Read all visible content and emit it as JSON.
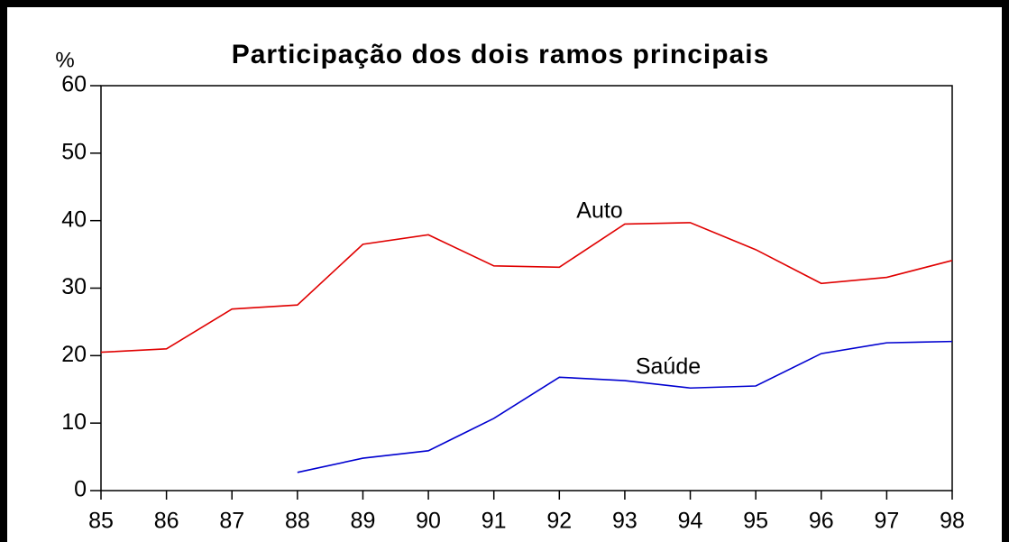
{
  "chart_data": {
    "type": "line",
    "title": "Participação dos dois ramos principais",
    "y_label": "%",
    "x": [
      85,
      86,
      87,
      88,
      89,
      90,
      91,
      92,
      93,
      94,
      95,
      96,
      97,
      98
    ],
    "xlim": [
      85,
      98
    ],
    "xticks": [
      85,
      86,
      87,
      88,
      89,
      90,
      91,
      92,
      93,
      94,
      95,
      96,
      97,
      98
    ],
    "ylim": [
      0,
      60
    ],
    "yticks": [
      0,
      10,
      20,
      30,
      40,
      50,
      60
    ],
    "grid": false,
    "series": [
      {
        "name": "Auto",
        "color": "#e00000",
        "values": [
          20.5,
          21.0,
          26.9,
          27.5,
          36.5,
          37.9,
          33.3,
          33.1,
          39.5,
          39.7,
          35.7,
          30.7,
          31.6,
          34.1
        ]
      },
      {
        "name": "Saúde",
        "color": "#0000d0",
        "values": [
          null,
          null,
          null,
          2.7,
          4.8,
          5.9,
          10.7,
          16.8,
          16.3,
          15.2,
          15.5,
          20.3,
          21.9,
          22.1
        ]
      }
    ]
  }
}
